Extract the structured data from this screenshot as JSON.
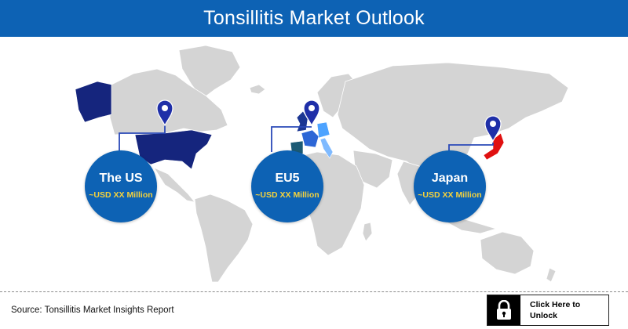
{
  "header": {
    "title": "Tonsillitis Market Outlook"
  },
  "markers": [
    {
      "region": "The US",
      "value": "~USD XX Million"
    },
    {
      "region": "EU5",
      "value": "~USD XX Million"
    },
    {
      "region": "Japan",
      "value": "~USD XX Million"
    }
  ],
  "footer": {
    "source": "Source: Tonsillitis Market Insights Report",
    "unlock_label": "Click Here to Unlock"
  },
  "icons": {
    "pin": "map-pin-icon",
    "lock": "lock-icon"
  },
  "colors": {
    "banner": "#0d62b4",
    "land": "#d4d4d4",
    "us_highlight": "#15257d",
    "uk_highlight": "#1c3693",
    "france_highlight": "#2c66d6",
    "germany_highlight": "#4da3ff",
    "italy_highlight": "#7fbaff",
    "spain_highlight": "#1b5a75",
    "japan_highlight": "#e01010",
    "pin": "#1f2fa8",
    "bubble": "#0d62b4",
    "bubble_value_text": "#f5d23c",
    "connector": "#2a49b8"
  }
}
